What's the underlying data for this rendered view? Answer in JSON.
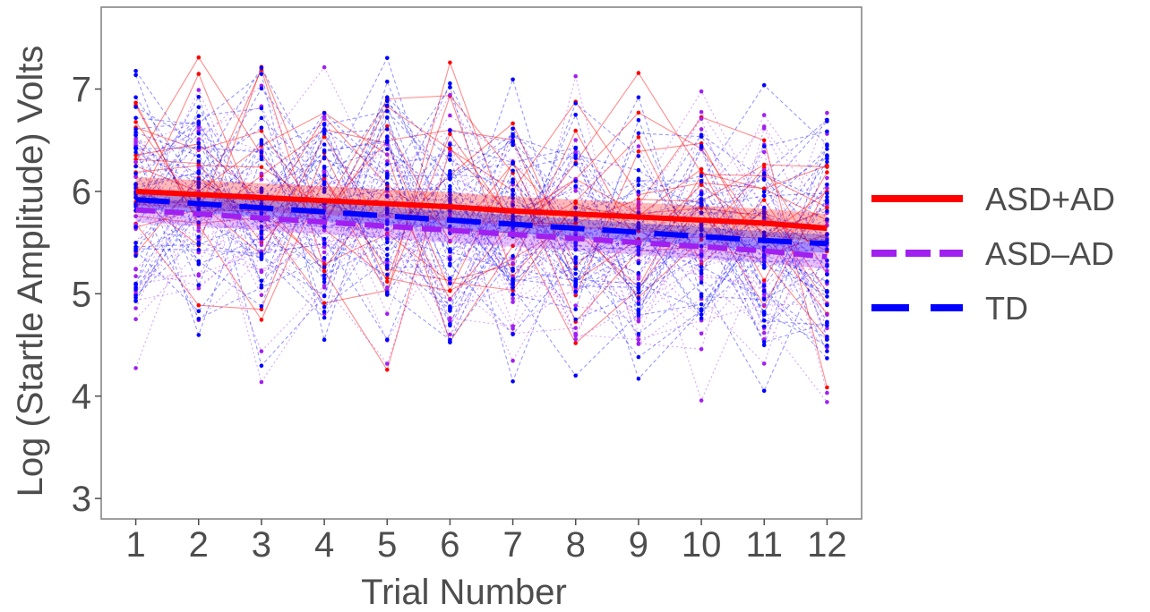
{
  "chart_data": {
    "type": "line",
    "title": "",
    "xlabel": "Trial Number",
    "ylabel": "Log (Startle Amplitude) Volts",
    "x": [
      1,
      2,
      3,
      4,
      5,
      6,
      7,
      8,
      9,
      10,
      11,
      12
    ],
    "x_ticks": [
      "1",
      "2",
      "3",
      "4",
      "5",
      "6",
      "7",
      "8",
      "9",
      "10",
      "11",
      "12"
    ],
    "y_ticks": [
      "3",
      "4",
      "5",
      "6",
      "7"
    ],
    "ylim": [
      2.8,
      7.8
    ],
    "xlim": [
      0.45,
      12.55
    ],
    "grid": false,
    "legend_position": "right",
    "series": [
      {
        "name": "ASD+AD",
        "color": "#ff0000",
        "linestyle": "solid",
        "fit": [
          6.0,
          5.97,
          5.94,
          5.91,
          5.88,
          5.85,
          5.81,
          5.78,
          5.75,
          5.72,
          5.69,
          5.64
        ],
        "ci_halfwidth": 0.14
      },
      {
        "name": "ASD–AD",
        "color": "#a020f0",
        "linestyle": "short-dash",
        "fit": [
          5.82,
          5.78,
          5.74,
          5.7,
          5.66,
          5.62,
          5.58,
          5.54,
          5.5,
          5.46,
          5.42,
          5.36
        ],
        "ci_halfwidth": 0.12
      },
      {
        "name": "TD",
        "color": "#0000ff",
        "linestyle": "long-dash",
        "fit": [
          5.92,
          5.88,
          5.84,
          5.8,
          5.76,
          5.72,
          5.68,
          5.64,
          5.6,
          5.56,
          5.52,
          5.49
        ],
        "ci_halfwidth": 0.09
      }
    ],
    "subjects_note": "individual participant trajectories shown as thin translucent lines"
  }
}
